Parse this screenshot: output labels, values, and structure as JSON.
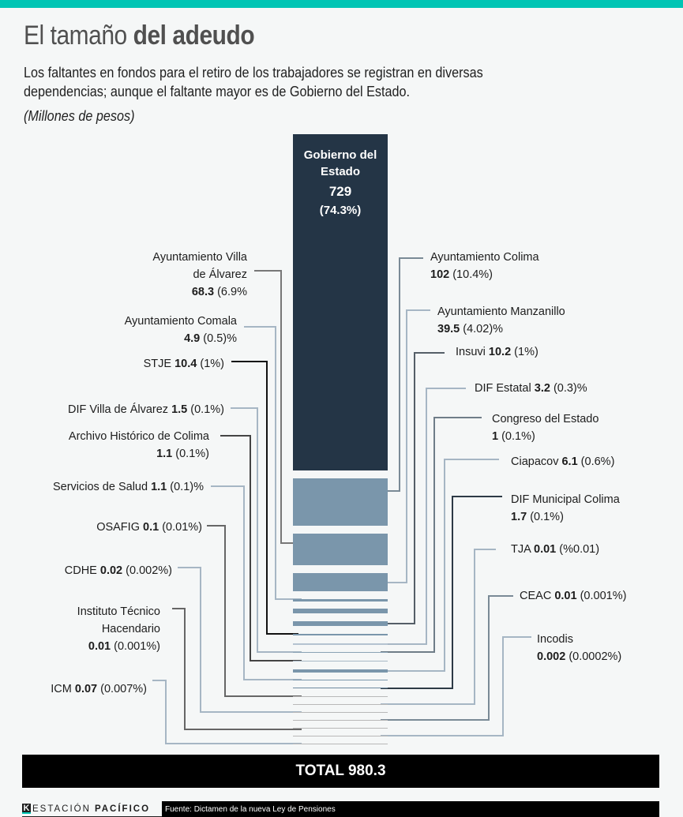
{
  "header": {
    "title_light": "El tamaño ",
    "title_bold": "del adeudo",
    "subtitle": "Los faltantes en fondos para el retiro de los trabajadores se registran en diversas dependencias; aunque el faltante mayor es de Gobierno del Estado.",
    "units": "(Millones de pesos)"
  },
  "colors": {
    "accent": "#00c5b4",
    "main_bar": "#243546",
    "secondary_bar": "#7a96ab",
    "background": "#f5f7f7"
  },
  "chart_data": {
    "type": "bar",
    "subtype": "stacked-single-column",
    "title": "El tamaño del adeudo",
    "ylabel": "Millones de pesos",
    "total": 980.3,
    "categories": [
      "Gobierno del Estado",
      "Ayuntamiento Colima",
      "Ayuntamiento Villa de Álvarez",
      "Ayuntamiento Manzanillo",
      "Ayuntamiento Comala",
      "STJE",
      "Insuvi",
      "DIF Estatal",
      "DIF Villa de Álvarez",
      "Congreso del Estado",
      "Archivo Histórico de Colima",
      "Ciapacov",
      "Servicios de Salud",
      "DIF Municipal Colima",
      "OSAFIG",
      "TJA",
      "CDHE",
      "CEAC",
      "Instituto Técnico Hacendario",
      "Incodis",
      "ICM"
    ],
    "values": [
      729,
      102,
      68.3,
      39.5,
      4.9,
      10.4,
      10.2,
      3.2,
      1.5,
      1,
      1.1,
      6.1,
      1.1,
      1.7,
      0.1,
      0.01,
      0.02,
      0.01,
      0.01,
      0.002,
      0.07
    ],
    "main": {
      "name_line1": "Gobierno del",
      "name_line2": "Estado",
      "value": "729",
      "pct": "(74.3%)"
    },
    "labels": [
      {
        "side": "left",
        "lines": [
          [
            {
              "t": "Ayuntamiento Villa"
            }
          ],
          [
            {
              "t": "de Álvarez"
            }
          ],
          [
            {
              "t": "68.3",
              "b": true
            },
            {
              "t": " (6.9%"
            }
          ]
        ]
      },
      {
        "side": "left",
        "lines": [
          [
            {
              "t": "Ayuntamiento Comala"
            }
          ],
          [
            {
              "t": "4.9",
              "b": true
            },
            {
              "t": " (0.5)%"
            }
          ]
        ]
      },
      {
        "side": "left",
        "lines": [
          [
            {
              "t": "STJE "
            },
            {
              "t": "10.4",
              "b": true
            },
            {
              "t": " (1%)"
            }
          ]
        ]
      },
      {
        "side": "left",
        "lines": [
          [
            {
              "t": "DIF Villa de Álvarez "
            },
            {
              "t": "1.5",
              "b": true
            },
            {
              "t": " (0.1%)"
            }
          ]
        ]
      },
      {
        "side": "left",
        "lines": [
          [
            {
              "t": "Archivo Histórico de Colima"
            }
          ],
          [
            {
              "t": "1.1",
              "b": true
            },
            {
              "t": " (0.1%)"
            }
          ]
        ]
      },
      {
        "side": "left",
        "lines": [
          [
            {
              "t": "Servicios de Salud "
            },
            {
              "t": "1.1",
              "b": true
            },
            {
              "t": " (0.1)%"
            }
          ]
        ]
      },
      {
        "side": "left",
        "lines": [
          [
            {
              "t": "OSAFIG "
            },
            {
              "t": "0.1",
              "b": true
            },
            {
              "t": " (0.01%)"
            }
          ]
        ]
      },
      {
        "side": "left",
        "lines": [
          [
            {
              "t": "CDHE "
            },
            {
              "t": "0.02",
              "b": true
            },
            {
              "t": " (0.002%)"
            }
          ]
        ]
      },
      {
        "side": "left",
        "lines": [
          [
            {
              "t": "Instituto Técnico"
            }
          ],
          [
            {
              "t": "Hacendario"
            }
          ],
          [
            {
              "t": "0.01",
              "b": true
            },
            {
              "t": " (0.001%)"
            }
          ]
        ]
      },
      {
        "side": "left",
        "lines": [
          [
            {
              "t": "ICM "
            },
            {
              "t": "0.07",
              "b": true
            },
            {
              "t": " (0.007%)"
            }
          ]
        ]
      },
      {
        "side": "right",
        "lines": [
          [
            {
              "t": "Ayuntamiento Colima"
            }
          ],
          [
            {
              "t": "102",
              "b": true
            },
            {
              "t": " (10.4%)"
            }
          ]
        ]
      },
      {
        "side": "right",
        "lines": [
          [
            {
              "t": "Ayuntamiento Manzanillo"
            }
          ],
          [
            {
              "t": "39.5",
              "b": true
            },
            {
              "t": " (4.02)%"
            }
          ]
        ]
      },
      {
        "side": "right",
        "lines": [
          [
            {
              "t": "Insuvi "
            },
            {
              "t": "10.2",
              "b": true
            },
            {
              "t": " (1%)"
            }
          ]
        ]
      },
      {
        "side": "right",
        "lines": [
          [
            {
              "t": "DIF Estatal "
            },
            {
              "t": "3.2",
              "b": true
            },
            {
              "t": " (0.3)%"
            }
          ]
        ]
      },
      {
        "side": "right",
        "lines": [
          [
            {
              "t": "Congreso del Estado"
            }
          ],
          [
            {
              "t": "1",
              "b": true
            },
            {
              "t": " (0.1%)"
            }
          ]
        ]
      },
      {
        "side": "right",
        "lines": [
          [
            {
              "t": "Ciapacov "
            },
            {
              "t": "6.1",
              "b": true
            },
            {
              "t": " (0.6%)"
            }
          ]
        ]
      },
      {
        "side": "right",
        "lines": [
          [
            {
              "t": "DIF Municipal Colima"
            }
          ],
          [
            {
              "t": "1.7",
              "b": true
            },
            {
              "t": " (0.1%)"
            }
          ]
        ]
      },
      {
        "side": "right",
        "lines": [
          [
            {
              "t": "TJA "
            },
            {
              "t": "0.01",
              "b": true
            },
            {
              "t": " (%0.01)"
            }
          ]
        ]
      },
      {
        "side": "right",
        "lines": [
          [
            {
              "t": "CEAC "
            },
            {
              "t": "0.01",
              "b": true
            },
            {
              "t": " (0.001%)"
            }
          ]
        ]
      },
      {
        "side": "right",
        "lines": [
          [
            {
              "t": "Incodis"
            }
          ],
          [
            {
              "t": "0.002",
              "b": true
            },
            {
              "t": " (0.0002%)"
            }
          ]
        ]
      }
    ]
  },
  "total": {
    "label": "TOTAL 980.3"
  },
  "footer": {
    "logo_mark": "K",
    "logo_light": "ESTACIÓN",
    "logo_bold": "PACÍFICO",
    "source": "Fuente: Dictamen de la nueva Ley de Pensiones"
  }
}
